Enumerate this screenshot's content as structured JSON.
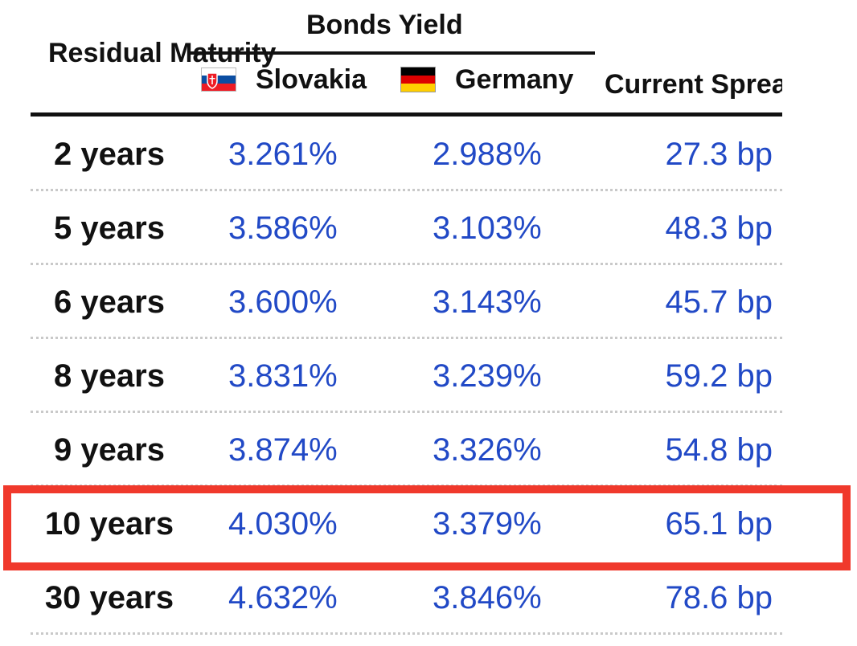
{
  "header": {
    "residual_maturity": "Residual Maturity",
    "bonds_yield": "Bonds Yield",
    "slovakia": "Slovakia",
    "germany": "Germany",
    "current_spread": "Current Spread"
  },
  "flags": {
    "slovakia": {
      "icon": "slovakia-flag-icon",
      "colors": [
        "#ffffff",
        "#0b4ea2",
        "#ee1c25"
      ]
    },
    "germany": {
      "icon": "germany-flag-icon",
      "colors": [
        "#000000",
        "#dd0000",
        "#ffce00"
      ]
    }
  },
  "colors": {
    "value_text": "#2149c6",
    "highlight": "#f0392c"
  },
  "rows": [
    {
      "maturity": "2 years",
      "slovakia": "3.261%",
      "germany": "2.988%",
      "spread": "27.3 bp"
    },
    {
      "maturity": "5 years",
      "slovakia": "3.586%",
      "germany": "3.103%",
      "spread": "48.3 bp"
    },
    {
      "maturity": "6 years",
      "slovakia": "3.600%",
      "germany": "3.143%",
      "spread": "45.7 bp"
    },
    {
      "maturity": "8 years",
      "slovakia": "3.831%",
      "germany": "3.239%",
      "spread": "59.2 bp"
    },
    {
      "maturity": "9 years",
      "slovakia": "3.874%",
      "germany": "3.326%",
      "spread": "54.8 bp"
    },
    {
      "maturity": "10 years",
      "slovakia": "4.030%",
      "germany": "3.379%",
      "spread": "65.1 bp"
    },
    {
      "maturity": "30 years",
      "slovakia": "4.632%",
      "germany": "3.846%",
      "spread": "78.6 bp"
    }
  ],
  "highlighted_row": "10 years"
}
